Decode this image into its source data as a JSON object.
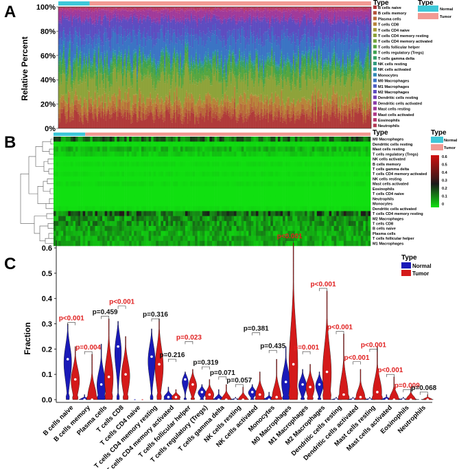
{
  "panels": {
    "a": "A",
    "b": "B",
    "c": "C"
  },
  "colors": {
    "normal_bar": "#3ec8d8",
    "tumor_bar": "#f29a93",
    "violin_normal": "#1a1ab8",
    "violin_tumor": "#d41a1a",
    "sig": "#e02020",
    "ns": "#111111"
  },
  "cell_types": [
    {
      "name": "B cells naive",
      "color": "#b03a3a"
    },
    {
      "name": "B cells memory",
      "color": "#b5533a"
    },
    {
      "name": "Plasma cells",
      "color": "#b86b3a"
    },
    {
      "name": "T cells CD8",
      "color": "#b8843a"
    },
    {
      "name": "T cells CD4 naive",
      "color": "#a89a38"
    },
    {
      "name": "T cells CD4 memory resting",
      "color": "#8ea33a"
    },
    {
      "name": "T cells CD4 memory activated",
      "color": "#73a63c"
    },
    {
      "name": "T cells follicular helper",
      "color": "#56a640"
    },
    {
      "name": "T cells regulatory (Tregs)",
      "color": "#3fa250"
    },
    {
      "name": "T cells gamma delta",
      "color": "#36a068"
    },
    {
      "name": "NK cells resting",
      "color": "#329c80"
    },
    {
      "name": "NK cells activated",
      "color": "#3196a0"
    },
    {
      "name": "Monocytes",
      "color": "#318ab8"
    },
    {
      "name": "M0 Macrophages",
      "color": "#3b74c4"
    },
    {
      "name": "M1 Macrophages",
      "color": "#4c5fc4"
    },
    {
      "name": "M2 Macrophages",
      "color": "#5e4cc0"
    },
    {
      "name": "Dendritic cells resting",
      "color": "#7442b8"
    },
    {
      "name": "Dendritic cells activated",
      "color": "#8a3caa"
    },
    {
      "name": "Mast cells resting",
      "color": "#a03a9a"
    },
    {
      "name": "Mast cells activated",
      "color": "#b03a88"
    },
    {
      "name": "Eosinophils",
      "color": "#b63a70"
    },
    {
      "name": "Neutrophils",
      "color": "#b43a56"
    }
  ],
  "chart_data": [
    {
      "type": "bar",
      "subtype": "stacked-100-percent",
      "ylabel": "Relative Percent",
      "yticks": [
        "0%",
        "20%",
        "40%",
        "60%",
        "80%",
        "100%"
      ],
      "ylim": [
        0,
        1
      ],
      "n_samples": 260,
      "n_normal": 26,
      "legend_title": "Type",
      "groups": [
        "Normal",
        "Tumor"
      ],
      "mean_composition": [
        0.1,
        0.03,
        0.05,
        0.06,
        0.01,
        0.16,
        0.02,
        0.07,
        0.04,
        0.01,
        0.02,
        0.01,
        0.02,
        0.13,
        0.06,
        0.1,
        0.01,
        0.02,
        0.05,
        0.01,
        0.01,
        0.01
      ]
    },
    {
      "type": "heatmap",
      "type_label": "Type",
      "legend_title": "Type",
      "groups": [
        "Normal",
        "Tumor"
      ],
      "colorbar_ticks": [
        "0.6",
        "0.5",
        "0.4",
        "0.3",
        "0.2",
        "0.1",
        "0"
      ],
      "row_labels": [
        "M0 Macrophages",
        "Dendritic cells resting",
        "Mast cells resting",
        "T cells regulatory (Tregs)",
        "NK cells activated",
        "B cells memory",
        "T cells gamma delta",
        "T cells CD4 memory activated",
        "NK cells resting",
        "Mast cells activated",
        "Eosinophils",
        "T cells CD4 naive",
        "Neutrophils",
        "Monocytes",
        "Dendritic cells activated",
        "T cells CD4 memory resting",
        "M2 Macrophages",
        "T cells CD8",
        "B cells naive",
        "Plasma cells",
        "T cells follicular helper",
        "M1 Macrophages"
      ],
      "row_mean": [
        0.15,
        0.01,
        0.06,
        0.03,
        0.0,
        0.01,
        0.0,
        0.01,
        0.0,
        0.01,
        0.0,
        0.0,
        0.0,
        0.0,
        0.01,
        0.17,
        0.11,
        0.11,
        0.09,
        0.08,
        0.08,
        0.08
      ]
    },
    {
      "type": "violin",
      "ylabel": "Fraction",
      "yticks": [
        "0.0",
        "0.1",
        "0.2",
        "0.3",
        "0.4",
        "0.5",
        "0.6"
      ],
      "ylim": [
        0,
        0.63
      ],
      "legend_title": "Type",
      "series": [
        "Normal",
        "Tumor"
      ],
      "categories": [
        "B cells naive",
        "B cells memory",
        "Plasma cells",
        "T cells CD8",
        "T cells CD4 naive",
        "T cells CD4 memory resting",
        "T cells CD4 memory activated",
        "T cells follicular helper",
        "T cells regulatory (Tregs)",
        "T cells gamma delta",
        "NK cells resting",
        "NK cells activated",
        "Monocytes",
        "M0 Macrophages",
        "M1 Macrophages",
        "M2 Macrophages",
        "Dendritic cells resting",
        "Dendritic cells activated",
        "Mast cells resting",
        "Mast cells activated",
        "Eosinophils",
        "Neutrophils"
      ],
      "normal_max": [
        0.3,
        0.02,
        0.22,
        0.31,
        0.0,
        0.28,
        0.05,
        0.11,
        0.06,
        0.04,
        0.01,
        0.06,
        0.03,
        0.21,
        0.12,
        0.11,
        0.01,
        0.01,
        0.01,
        0.02,
        0.01,
        0.003
      ],
      "normal_med": [
        0.16,
        0.0,
        0.06,
        0.21,
        0.0,
        0.17,
        0.01,
        0.08,
        0.03,
        0.0,
        0.0,
        0.03,
        0.0,
        0.07,
        0.06,
        0.06,
        0.0,
        0.0,
        0.0,
        0.0,
        0.0,
        0.0
      ],
      "tumor_max": [
        0.21,
        0.18,
        0.32,
        0.25,
        0.0,
        0.32,
        0.04,
        0.12,
        0.08,
        0.06,
        0.05,
        0.11,
        0.16,
        0.62,
        0.14,
        0.43,
        0.26,
        0.12,
        0.21,
        0.09,
        0.05,
        0.02
      ],
      "tumor_med": [
        0.08,
        0.0,
        0.09,
        0.1,
        0.0,
        0.14,
        0.01,
        0.06,
        0.02,
        0.0,
        0.0,
        0.02,
        0.01,
        0.14,
        0.05,
        0.11,
        0.02,
        0.01,
        0.03,
        0.0,
        0.0,
        0.0
      ],
      "bracket_y": [
        0.305,
        0.19,
        0.33,
        0.37,
        null,
        0.32,
        0.16,
        0.23,
        0.13,
        0.09,
        0.06,
        0.265,
        0.195,
        0.63,
        0.19,
        0.44,
        0.27,
        0.15,
        0.2,
        0.1,
        0.04,
        0.03
      ],
      "pvalues": [
        "p<0.001",
        "p=0.004",
        "p=0.459",
        "p<0.001",
        "",
        "p=0.316",
        "p=0.216",
        "p=0.023",
        "p=0.319",
        "p=0.071",
        "p=0.057",
        "p=0.381",
        "p=0.435",
        "p<0.001",
        "p=0.001",
        "p<0.001",
        "p<0.001",
        "p<0.001",
        "p<0.001",
        "p<0.001",
        "p=0.009",
        "p=0.068"
      ],
      "significant": [
        true,
        true,
        false,
        true,
        false,
        false,
        false,
        true,
        false,
        false,
        false,
        false,
        false,
        true,
        true,
        true,
        true,
        true,
        true,
        true,
        true,
        false
      ]
    }
  ]
}
